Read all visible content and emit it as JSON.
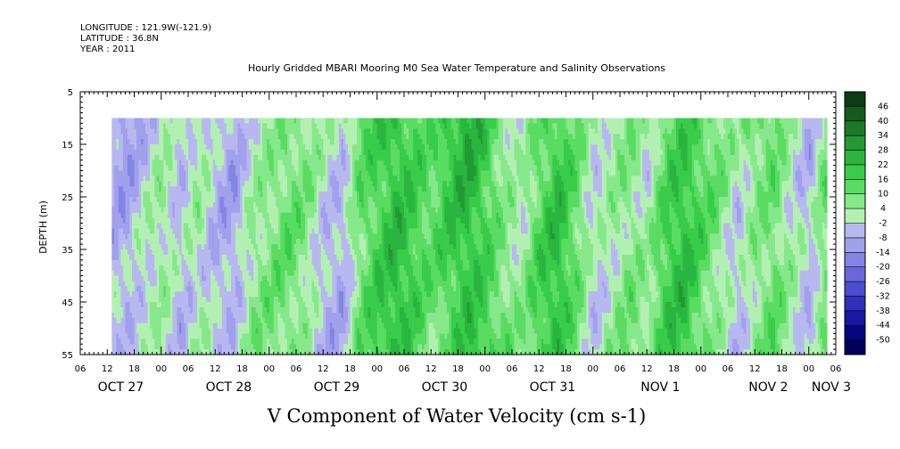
{
  "header": {
    "longitude": "LONGITUDE : 121.9W(-121.9)",
    "latitude": "LATITUDE : 36.8N",
    "year": "YEAR : 2011"
  },
  "chart_data": {
    "type": "heatmap",
    "title": "Hourly Gridded MBARI Mooring M0 Sea Water Temperature and Salinity Observations",
    "xlabel": "V Component of Water Velocity (cm s-1)",
    "ylabel": "DEPTH (m)",
    "ylim": [
      55,
      5
    ],
    "y_ticks": [
      5,
      15,
      25,
      35,
      45,
      55
    ],
    "x_range_hours": [
      0,
      168
    ],
    "x_hour_ticks": [
      "06",
      "12",
      "18",
      "00",
      "06",
      "12",
      "18",
      "00",
      "06",
      "12",
      "18",
      "00",
      "06",
      "12",
      "18",
      "00",
      "06",
      "12",
      "18",
      "00",
      "06",
      "12",
      "18",
      "00",
      "06",
      "12",
      "18",
      "00",
      "06"
    ],
    "date_labels": [
      "OCT 27",
      "OCT 28",
      "OCT 29",
      "OCT 30",
      "OCT 31",
      "NOV  1",
      "NOV  2",
      "NOV  3"
    ],
    "data_start_hour": 7,
    "data_end_hour": 166,
    "data_depth_range": [
      10,
      55
    ],
    "colorbar_levels": [
      46,
      40,
      34,
      28,
      22,
      16,
      10,
      4,
      -2,
      -8,
      -14,
      -20,
      -26,
      -32,
      -38,
      -44,
      -50
    ],
    "colorbar_colors": [
      "#0d3d14",
      "#135c1e",
      "#1b7a28",
      "#229a33",
      "#2ab63e",
      "#38cc4a",
      "#5adc62",
      "#86e88a",
      "#b2f0b2",
      "#b8b8f0",
      "#a0a0ec",
      "#8484e4",
      "#6868da",
      "#4c4cce",
      "#3030bc",
      "#1818a4",
      "#060680",
      "#00005c"
    ],
    "field_profile": [
      {
        "hour": 7,
        "v": -6
      },
      {
        "hour": 10,
        "v": -8
      },
      {
        "hour": 14,
        "v": -3
      },
      {
        "hour": 18,
        "v": 2
      },
      {
        "hour": 22,
        "v": -5
      },
      {
        "hour": 26,
        "v": 3
      },
      {
        "hour": 30,
        "v": -4
      },
      {
        "hour": 34,
        "v": -7
      },
      {
        "hour": 38,
        "v": 4
      },
      {
        "hour": 42,
        "v": 6
      },
      {
        "hour": 46,
        "v": 9
      },
      {
        "hour": 50,
        "v": 5
      },
      {
        "hour": 54,
        "v": -3
      },
      {
        "hour": 58,
        "v": -5
      },
      {
        "hour": 62,
        "v": 12
      },
      {
        "hour": 66,
        "v": 18
      },
      {
        "hour": 70,
        "v": 22
      },
      {
        "hour": 74,
        "v": 16
      },
      {
        "hour": 78,
        "v": 10
      },
      {
        "hour": 82,
        "v": 18
      },
      {
        "hour": 86,
        "v": 24
      },
      {
        "hour": 90,
        "v": 18
      },
      {
        "hour": 94,
        "v": 8
      },
      {
        "hour": 98,
        "v": 3
      },
      {
        "hour": 102,
        "v": 14
      },
      {
        "hour": 106,
        "v": 20
      },
      {
        "hour": 110,
        "v": 10
      },
      {
        "hour": 114,
        "v": -2
      },
      {
        "hour": 118,
        "v": 4
      },
      {
        "hour": 122,
        "v": 9
      },
      {
        "hour": 126,
        "v": 3
      },
      {
        "hour": 130,
        "v": 16
      },
      {
        "hour": 134,
        "v": 20
      },
      {
        "hour": 138,
        "v": 12
      },
      {
        "hour": 142,
        "v": 6
      },
      {
        "hour": 146,
        "v": -2
      },
      {
        "hour": 150,
        "v": 8
      },
      {
        "hour": 154,
        "v": 12
      },
      {
        "hour": 158,
        "v": 2
      },
      {
        "hour": 162,
        "v": -6
      },
      {
        "hour": 166,
        "v": 10
      }
    ]
  }
}
